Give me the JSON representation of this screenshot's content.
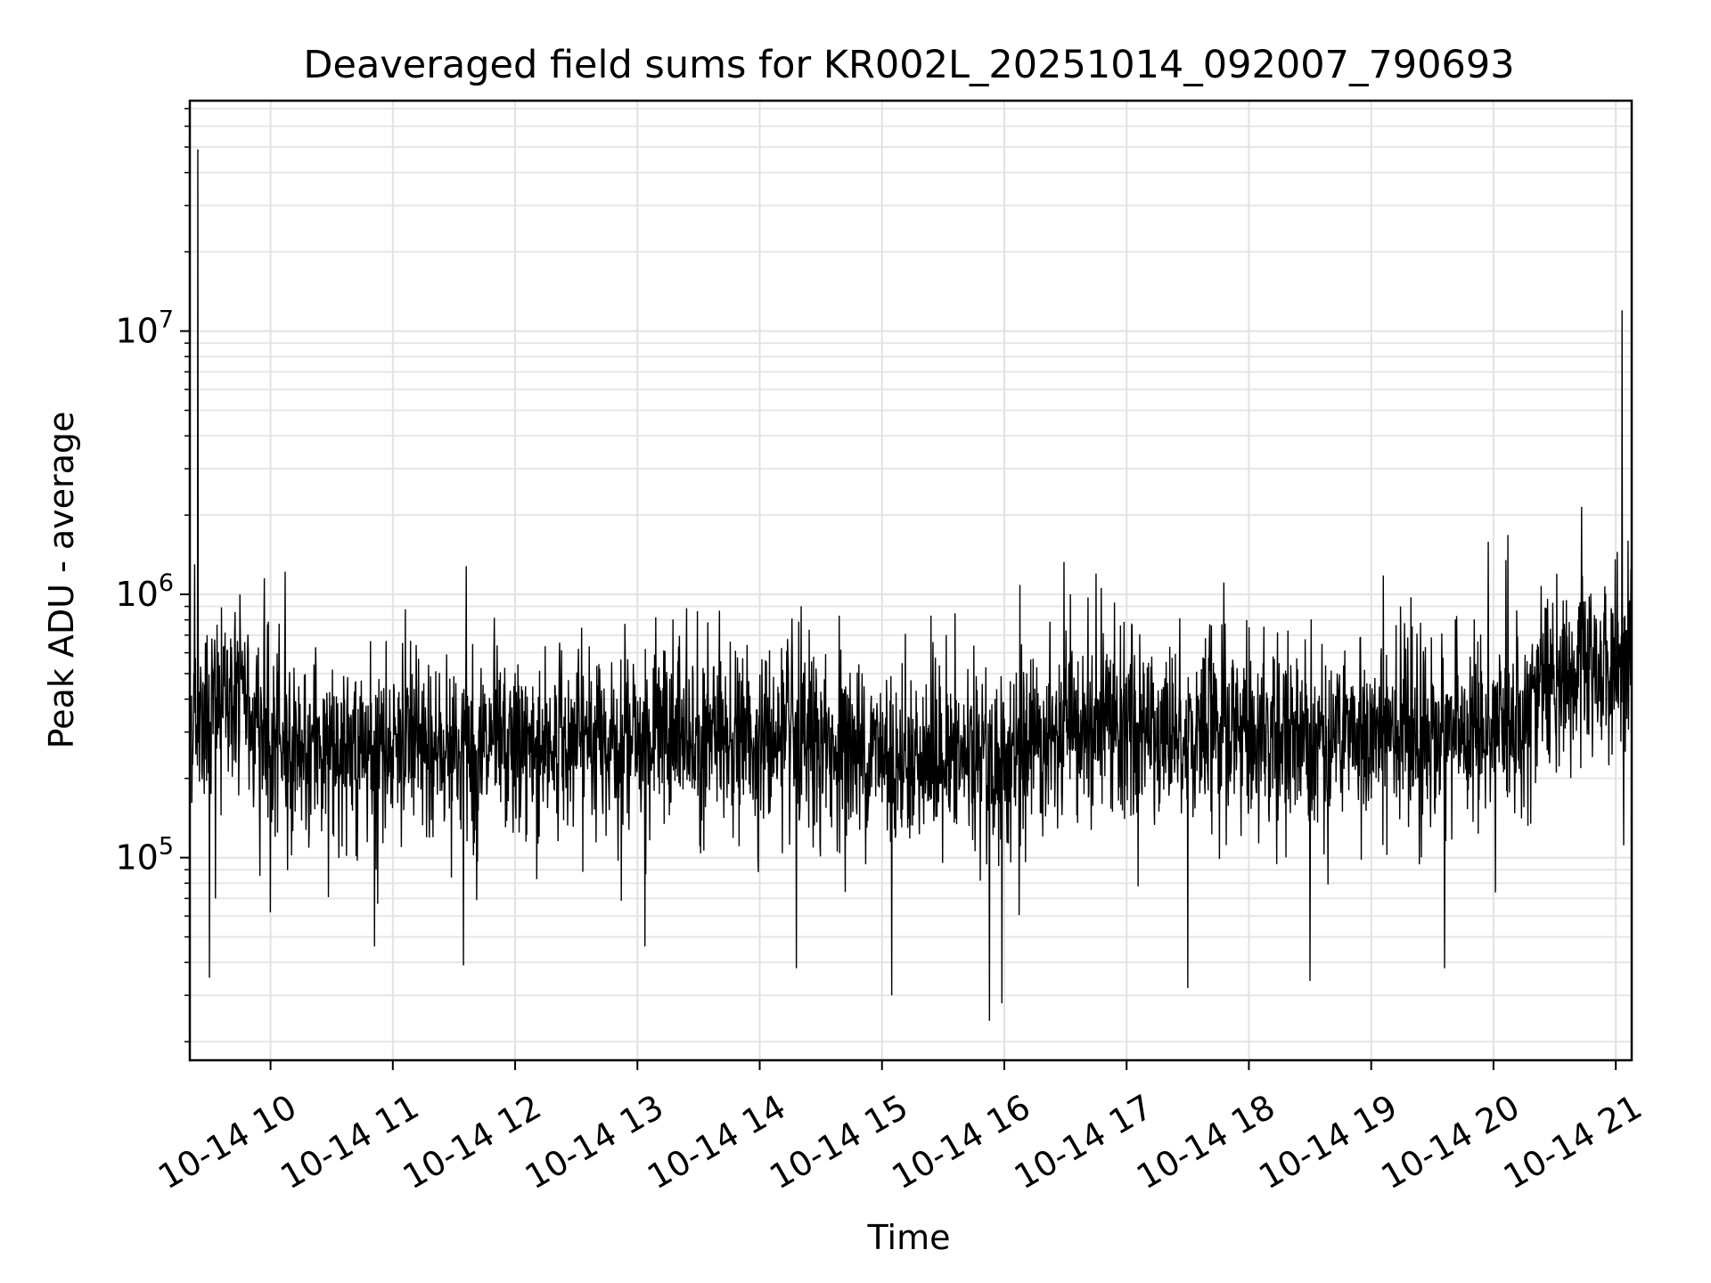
{
  "chart_data": {
    "type": "line",
    "title": "Deaveraged field sums for KR002L_20251014_092007_790693",
    "xlabel": "Time",
    "ylabel": "Peak ADU - average",
    "yscale": "log",
    "xlim_hours": [
      9.34,
      21.13
    ],
    "ylim": [
      17000,
      75000000
    ],
    "grid": true,
    "line_color": "#000000",
    "x_ticks": [
      {
        "hour": 10,
        "label": "10-14 10"
      },
      {
        "hour": 11,
        "label": "10-14 11"
      },
      {
        "hour": 12,
        "label": "10-14 12"
      },
      {
        "hour": 13,
        "label": "10-14 13"
      },
      {
        "hour": 14,
        "label": "10-14 14"
      },
      {
        "hour": 15,
        "label": "10-14 15"
      },
      {
        "hour": 16,
        "label": "10-14 16"
      },
      {
        "hour": 17,
        "label": "10-14 17"
      },
      {
        "hour": 18,
        "label": "10-14 18"
      },
      {
        "hour": 19,
        "label": "10-14 19"
      },
      {
        "hour": 20,
        "label": "10-14 20"
      },
      {
        "hour": 21,
        "label": "10-14 21"
      }
    ],
    "y_ticks": [
      {
        "value": 100000,
        "base": "10",
        "exp": "5"
      },
      {
        "value": 1000000,
        "base": "10",
        "exp": "6"
      },
      {
        "value": 10000000,
        "base": "10",
        "exp": "7"
      }
    ],
    "series": [
      {
        "name": "deaveraged field sum",
        "baseline": [
          [
            9.34,
            350000
          ],
          [
            9.7,
            420000
          ],
          [
            9.8,
            400000
          ],
          [
            10.0,
            270000
          ],
          [
            12.0,
            260000
          ],
          [
            13.0,
            290000
          ],
          [
            14.5,
            270000
          ],
          [
            15.5,
            230000
          ],
          [
            16.0,
            240000
          ],
          [
            16.8,
            310000
          ],
          [
            18.0,
            300000
          ],
          [
            19.0,
            290000
          ],
          [
            19.5,
            290000
          ],
          [
            20.0,
            300000
          ],
          [
            20.5,
            450000
          ],
          [
            21.13,
            570000
          ]
        ],
        "spikes": [
          [
            9.38,
            1300000
          ],
          [
            9.405,
            49000000
          ],
          [
            9.5,
            35000
          ],
          [
            9.55,
            70000
          ],
          [
            9.75,
            1000000
          ],
          [
            10.0,
            62000
          ],
          [
            10.12,
            1220000
          ],
          [
            10.85,
            46000
          ],
          [
            11.6,
            1280000
          ],
          [
            13.06,
            46000
          ],
          [
            14.3,
            38000
          ],
          [
            14.65,
            830000
          ],
          [
            15.08,
            30000
          ],
          [
            15.4,
            830000
          ],
          [
            15.88,
            24000
          ],
          [
            15.98,
            28000
          ],
          [
            16.75,
            1200000
          ],
          [
            17.5,
            32000
          ],
          [
            18.5,
            34000
          ],
          [
            19.1,
            1180000
          ],
          [
            19.6,
            38000
          ],
          [
            20.1,
            1350000
          ],
          [
            20.72,
            2150000
          ],
          [
            21.05,
            12000000
          ],
          [
            21.1,
            1600000
          ]
        ]
      }
    ]
  }
}
